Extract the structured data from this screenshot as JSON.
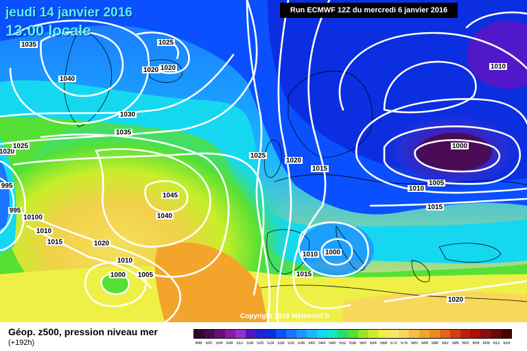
{
  "header": {
    "date": "jeudi 14 janvier 2016",
    "local_time": "13:00 locale",
    "run": "Run ECMWF 12Z du mercredi 6 janvier 2016"
  },
  "copyright": "Copyright 2016 Meteociel.fr",
  "footer": {
    "title": "Géop. z500, pression niveau mer",
    "forecast_hour": "(+192h)"
  },
  "colors": {
    "isobar": "#ffffff",
    "coast": "#000000"
  },
  "legend": {
    "ticks": [
      "496",
      "500",
      "504",
      "508",
      "512",
      "516",
      "520",
      "524",
      "528",
      "532",
      "536",
      "540",
      "544",
      "548",
      "552",
      "556",
      "560",
      "564",
      "568",
      "572",
      "576",
      "580",
      "584",
      "588",
      "592",
      "596",
      "600",
      "604",
      "608",
      "612",
      "616"
    ],
    "colors": [
      "#2e0b2e",
      "#4a0a4e",
      "#6a0f7a",
      "#8a17a8",
      "#9b30c8",
      "#5018c8",
      "#2222d8",
      "#0a2ee0",
      "#0a50ff",
      "#1a74ff",
      "#1e95ff",
      "#1ab8ff",
      "#15d8f0",
      "#15e8c8",
      "#25e070",
      "#55e035",
      "#95e823",
      "#c8ee2a",
      "#eef045",
      "#f8e86a",
      "#f8d85a",
      "#f4c040",
      "#f2a52a",
      "#ec8a1e",
      "#e26614",
      "#d23f0e",
      "#be200a",
      "#a8120a",
      "#8a0f0a",
      "#680a08",
      "#450605"
    ]
  },
  "pressure_labels": [
    {
      "id": "p1035",
      "text": "1035"
    },
    {
      "id": "p1040a",
      "text": "1040"
    },
    {
      "id": "p1025a",
      "text": "1025"
    },
    {
      "id": "p1020a",
      "text": "1020"
    },
    {
      "id": "p1020b",
      "text": "1020"
    },
    {
      "id": "p1030",
      "text": "1030"
    },
    {
      "id": "p1035b",
      "text": "1035"
    },
    {
      "id": "p1020c",
      "text": "1020"
    },
    {
      "id": "p1025b",
      "text": "1025"
    },
    {
      "id": "p995a",
      "text": "995"
    },
    {
      "id": "p995b",
      "text": "995"
    },
    {
      "id": "p10100",
      "text": "10100"
    },
    {
      "id": "p1010a",
      "text": "1010"
    },
    {
      "id": "p1015a",
      "text": "1015"
    },
    {
      "id": "p1045",
      "text": "1045"
    },
    {
      "id": "p1040b",
      "text": "1040"
    },
    {
      "id": "p1020d",
      "text": "1020"
    },
    {
      "id": "p1010b",
      "text": "1010"
    },
    {
      "id": "p1000a",
      "text": "1000"
    },
    {
      "id": "p1005a",
      "text": "1005"
    },
    {
      "id": "p1025c",
      "text": "1025"
    },
    {
      "id": "p1020e",
      "text": "1020"
    },
    {
      "id": "p1015b",
      "text": "1015"
    },
    {
      "id": "p1010c",
      "text": "1010"
    },
    {
      "id": "p1000b",
      "text": "1000"
    },
    {
      "id": "p1015c",
      "text": "1015"
    },
    {
      "id": "p1000c",
      "text": "1000"
    },
    {
      "id": "p1005b",
      "text": "1005"
    },
    {
      "id": "p1010d",
      "text": "1010"
    },
    {
      "id": "p1015d",
      "text": "1015"
    },
    {
      "id": "p1010e",
      "text": "1010"
    },
    {
      "id": "p1020f",
      "text": "1020"
    }
  ]
}
